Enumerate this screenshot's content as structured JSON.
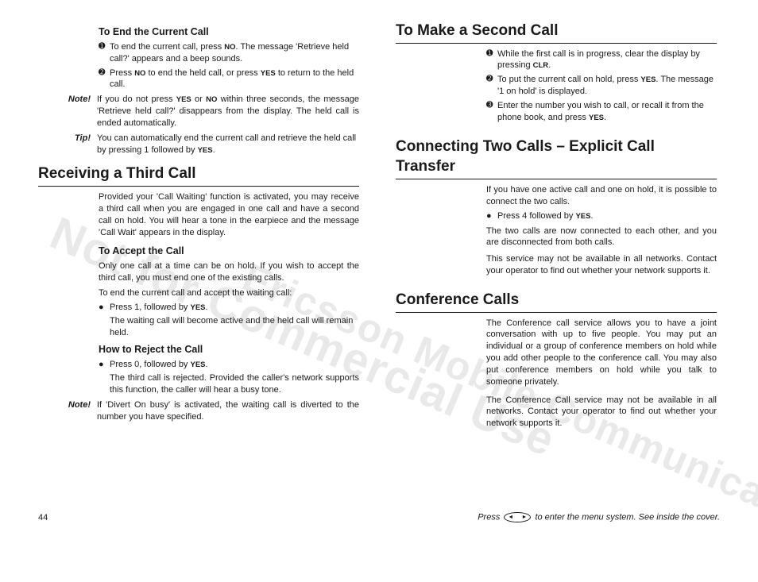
{
  "watermarks": {
    "line1": "Not for Commercial Use",
    "line2": "Ericsson Mobile Communications AB"
  },
  "left": {
    "sub_end": "To End the Current Call",
    "end_items": [
      "To end the current call, press <b class='key'>NO</b>. The message 'Retrieve held call?' appears and a beep sounds.",
      "Press <b class='key'>NO</b> to end the held call, or press <b class='key'>YES</b> to return to the held call."
    ],
    "note_label": "Note!",
    "note_text": "If you do not press <b class='key'>YES</b> or <b class='key'>NO</b> within three seconds, the message 'Retrieve held call?' disappears from the display. The held call is ended automatically.",
    "tip_label": "Tip!",
    "tip_text": "You can automatically end the current call and retrieve the held call by pressing 1 followed by <b class='key'>YES</b>.",
    "h2_receive": "Receiving a Third Call",
    "receive_para": "Provided your 'Call Waiting' function is activated, you may receive a third call when you are engaged in one call and have a second call on hold. You will hear a tone in the earpiece and the message 'Call Wait' appears in the display.",
    "sub_accept": "To Accept the Call",
    "accept_p1": "Only one call at a time can be on hold. If you wish to accept the third call, you must end one of the existing calls.",
    "accept_p2": "To end the current call and accept the waiting call:",
    "accept_bullet": "Press 1, followed by <b class='key'>YES</b>.",
    "accept_sub": "The waiting call will become active and the held call will remain held.",
    "sub_reject": "How to Reject the Call",
    "reject_bullet": "Press 0, followed by <b class='key'>YES</b>.",
    "reject_sub": "The third call is rejected. Provided the caller's network supports this function, the caller will hear a busy tone.",
    "reject_note": "If 'Divert On busy' is activated, the waiting call is diverted to the number you have specified."
  },
  "right": {
    "h2_second": "To Make a Second Call",
    "second_items": [
      "While the first call is in progress, clear the display by pressing <b class='key'>CLR</b>.",
      "To put the current call on hold, press <b class='key'>YES</b>. The message '1 on hold' is displayed.",
      "Enter the number you wish to call, or recall it from the phone book, and press <b class='key'>YES</b>."
    ],
    "h2_transfer": "Connecting Two Calls – Explicit Call Transfer",
    "transfer_p1": "If you have one active call and one on hold, it is possible to connect the two calls.",
    "transfer_bullet": "Press 4 followed by <b class='key'>YES</b>.",
    "transfer_p2": "The two calls are now connected to each other, and you are disconnected from both calls.",
    "transfer_p3": "This service may not be available in all networks. Contact your operator to find out whether your network supports it.",
    "h2_conf": "Conference Calls",
    "conf_p1": "The Conference call service allows you to have a joint conversation with up to five people. You may put an individual or a group of conference members on hold while you add other people to the conference call. You may also put conference members on hold while you talk to someone privately.",
    "conf_p2": "The Conference Call service may not be available in all networks. Contact your operator to find out whether your network supports it."
  },
  "footer": {
    "page_num": "44",
    "hint_before": "Press",
    "hint_after": "to enter the menu system. See inside the cover."
  }
}
